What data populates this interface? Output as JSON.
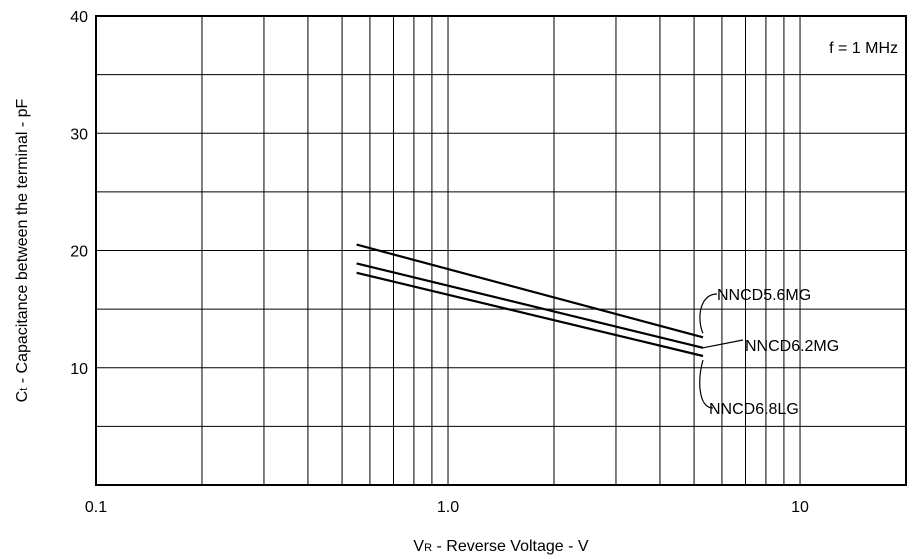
{
  "chart_data": {
    "type": "line",
    "x_scale": "log",
    "xlim": [
      0.1,
      20
    ],
    "ylim": [
      0,
      40
    ],
    "x_ticks": [
      {
        "value": 0.1,
        "label": "0.1"
      },
      {
        "value": 1,
        "label": "1.0"
      },
      {
        "value": 10,
        "label": "10"
      }
    ],
    "y_ticks": [
      {
        "value": 10,
        "label": "10"
      },
      {
        "value": 20,
        "label": "20"
      },
      {
        "value": 30,
        "label": "30"
      },
      {
        "value": 40,
        "label": "40"
      }
    ],
    "y_minor_grid": [
      5,
      15,
      25,
      35
    ],
    "xlabel_main": "V",
    "xlabel_sub": "R",
    "xlabel_rest": " - Reverse Voltage - V",
    "ylabel_main": "C",
    "ylabel_sub": "t",
    "ylabel_rest": " - Capacitance between the terminal - pF",
    "annotation": "f = 1 MHz",
    "grid": true,
    "series": [
      {
        "name": "NNCD5.6MG",
        "x": [
          0.55,
          5.3
        ],
        "y": [
          20.5,
          12.6
        ]
      },
      {
        "name": "NNCD6.2MG",
        "x": [
          0.55,
          5.3
        ],
        "y": [
          18.9,
          11.7
        ]
      },
      {
        "name": "NNCD6.8LG",
        "x": [
          0.55,
          5.3
        ],
        "y": [
          18.1,
          11.0
        ]
      }
    ]
  }
}
